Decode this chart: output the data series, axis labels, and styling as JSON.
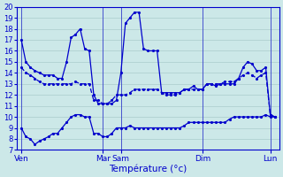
{
  "xlabel": "Température (°c)",
  "background_color": "#cce8e8",
  "grid_color": "#aacccc",
  "line_color": "#0000cc",
  "ylim": [
    7,
    20
  ],
  "yticks": [
    7,
    8,
    9,
    10,
    11,
    12,
    13,
    14,
    15,
    16,
    17,
    18,
    19,
    20
  ],
  "x_tick_positions": [
    0,
    18,
    22,
    40,
    55
  ],
  "x_tick_labels": [
    "Ven",
    "Mar",
    "Sam",
    "Dim",
    "Lun"
  ],
  "num_points": 57,
  "max_temps": [
    17,
    15.0,
    14.5,
    14.2,
    14.0,
    13.8,
    13.8,
    13.8,
    13.5,
    13.5,
    15.0,
    17.2,
    17.5,
    18.0,
    16.2,
    16.0,
    12.0,
    11.2,
    11.2,
    11.2,
    11.2,
    11.5,
    14.0,
    18.5,
    19.0,
    19.5,
    19.5,
    16.2,
    16.0,
    16.0,
    16.0,
    12.2,
    12.2,
    12.2,
    12.2,
    12.2,
    12.5,
    12.5,
    12.8,
    12.5,
    12.5,
    13.0,
    13.0,
    12.8,
    13.0,
    13.0,
    13.0,
    13.0,
    13.5,
    14.5,
    15.0,
    14.8,
    14.2,
    14.2,
    14.5,
    10.2,
    10.0
  ],
  "mean_temps": [
    14.5,
    14.0,
    13.8,
    13.5,
    13.2,
    13.0,
    13.0,
    13.0,
    13.0,
    13.0,
    13.0,
    13.0,
    13.2,
    13.0,
    13.0,
    13.0,
    11.5,
    11.5,
    11.2,
    11.2,
    11.5,
    12.0,
    12.0,
    12.0,
    12.2,
    12.5,
    12.5,
    12.5,
    12.5,
    12.5,
    12.5,
    12.2,
    12.0,
    12.0,
    12.0,
    12.2,
    12.5,
    12.5,
    12.5,
    12.5,
    12.5,
    13.0,
    13.0,
    13.0,
    13.0,
    13.2,
    13.2,
    13.2,
    13.5,
    13.8,
    14.0,
    13.8,
    13.5,
    13.8,
    14.0,
    10.2,
    10.0
  ],
  "min_temps": [
    9.0,
    8.2,
    8.0,
    7.5,
    7.8,
    8.0,
    8.2,
    8.5,
    8.5,
    9.0,
    9.5,
    10.0,
    10.2,
    10.2,
    10.0,
    10.0,
    8.5,
    8.5,
    8.2,
    8.2,
    8.5,
    9.0,
    9.0,
    9.0,
    9.2,
    9.0,
    9.0,
    9.0,
    9.0,
    9.0,
    9.0,
    9.0,
    9.0,
    9.0,
    9.0,
    9.0,
    9.2,
    9.5,
    9.5,
    9.5,
    9.5,
    9.5,
    9.5,
    9.5,
    9.5,
    9.5,
    9.8,
    10.0,
    10.0,
    10.0,
    10.0,
    10.0,
    10.0,
    10.0,
    10.2,
    10.0,
    10.0
  ]
}
